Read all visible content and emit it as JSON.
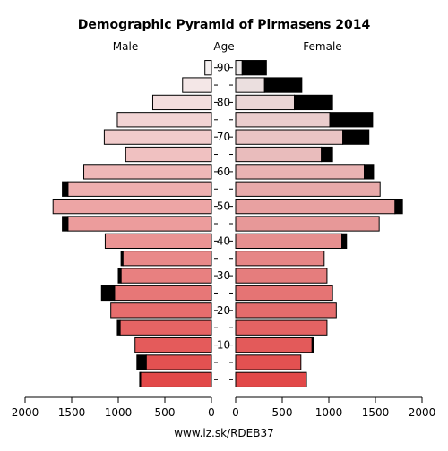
{
  "chart_data": {
    "type": "bar",
    "title": "Demographic Pyramid of Pirmasens 2014",
    "left_label": "Male",
    "center_label": "Age",
    "right_label": "Female",
    "footer": "www.iz.sk/RDEB37",
    "age_groups": [
      "0-4",
      "5-9",
      "10-14",
      "15-19",
      "20-24",
      "25-29",
      "30-34",
      "35-39",
      "40-44",
      "45-49",
      "50-54",
      "55-59",
      "60-64",
      "65-69",
      "70-74",
      "75-79",
      "80-84",
      "85-89",
      "90+"
    ],
    "age_tick_labels": [
      "10",
      "20",
      "30",
      "40",
      "50",
      "60",
      "70",
      "80",
      "90"
    ],
    "age_tick_groups": [
      2,
      4,
      6,
      8,
      10,
      12,
      14,
      16,
      18
    ],
    "x_ticks_male": [
      "2000",
      "1500",
      "1000",
      "500",
      "0"
    ],
    "x_ticks_female": [
      "0",
      "500",
      "1000",
      "1500",
      "2000"
    ],
    "xlim": [
      0,
      2000
    ],
    "series": [
      {
        "name": "Male",
        "values": [
          760,
          700,
          820,
          980,
          1080,
          1040,
          970,
          950,
          1140,
          1540,
          1700,
          1540,
          1370,
          920,
          1150,
          1010,
          630,
          310,
          70
        ],
        "excess": [
          10,
          100,
          0,
          30,
          0,
          140,
          30,
          20,
          0,
          60,
          0,
          60,
          0,
          0,
          0,
          0,
          0,
          0,
          0
        ]
      },
      {
        "name": "Female",
        "values": [
          760,
          700,
          820,
          980,
          1080,
          1040,
          980,
          950,
          1140,
          1540,
          1710,
          1550,
          1380,
          920,
          1150,
          1010,
          630,
          310,
          70
        ],
        "excess": [
          0,
          0,
          20,
          0,
          0,
          0,
          0,
          0,
          50,
          0,
          80,
          0,
          100,
          120,
          280,
          460,
          410,
          400,
          260
        ]
      }
    ]
  }
}
